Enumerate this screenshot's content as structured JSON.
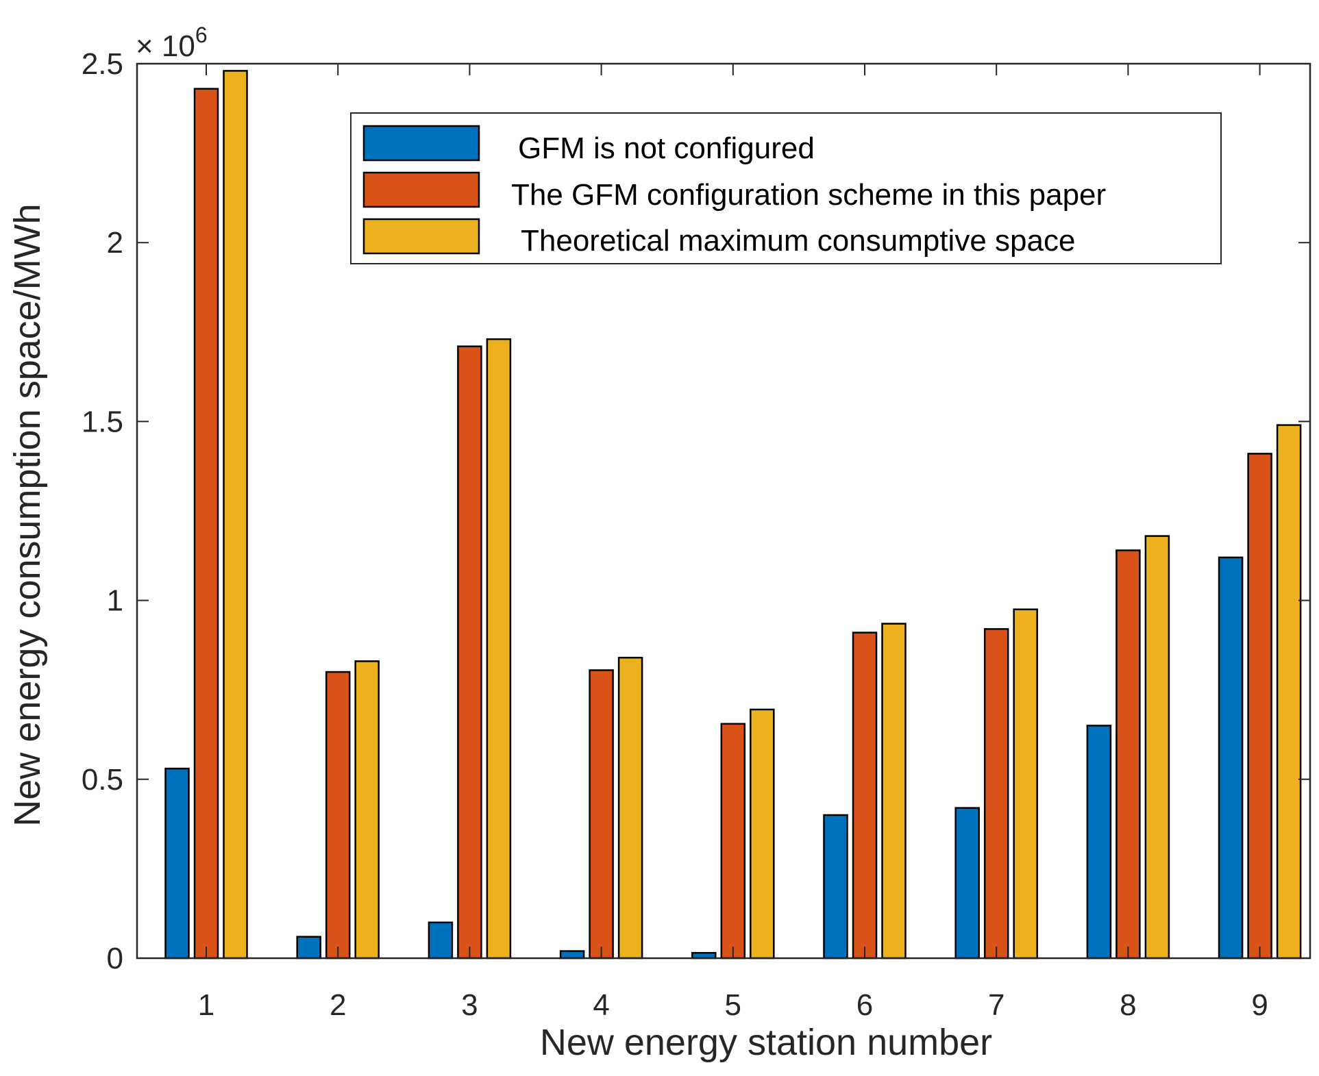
{
  "chart_data": {
    "type": "bar",
    "title": "",
    "xlabel": "New energy station number",
    "ylabel": "New energy consumption space/MWh",
    "y_multiplier": {
      "base": "× 10",
      "exponent": "6"
    },
    "categories": [
      "1",
      "2",
      "3",
      "4",
      "5",
      "6",
      "7",
      "8",
      "9"
    ],
    "ylim": [
      0,
      2500000
    ],
    "yticks": [
      0,
      500000,
      1000000,
      1500000,
      2000000,
      2500000
    ],
    "ytick_labels": [
      "0",
      "0.5",
      "1",
      "1.5",
      "2",
      "2.5"
    ],
    "legend_position": "top-right",
    "grid": false,
    "series": [
      {
        "name": "GFM is not configured",
        "color": "#0072BD",
        "values": [
          530000,
          60000,
          100000,
          20000,
          15000,
          400000,
          420000,
          650000,
          1120000
        ]
      },
      {
        "name": "The GFM configuration scheme in this paper",
        "color": "#D95319",
        "values": [
          2430000,
          800000,
          1710000,
          805000,
          655000,
          910000,
          920000,
          1140000,
          1410000
        ]
      },
      {
        "name": "Theoretical maximum consumptive space",
        "color": "#EDB120",
        "values": [
          2480000,
          830000,
          1730000,
          840000,
          695000,
          935000,
          975000,
          1180000,
          1490000
        ]
      }
    ]
  }
}
